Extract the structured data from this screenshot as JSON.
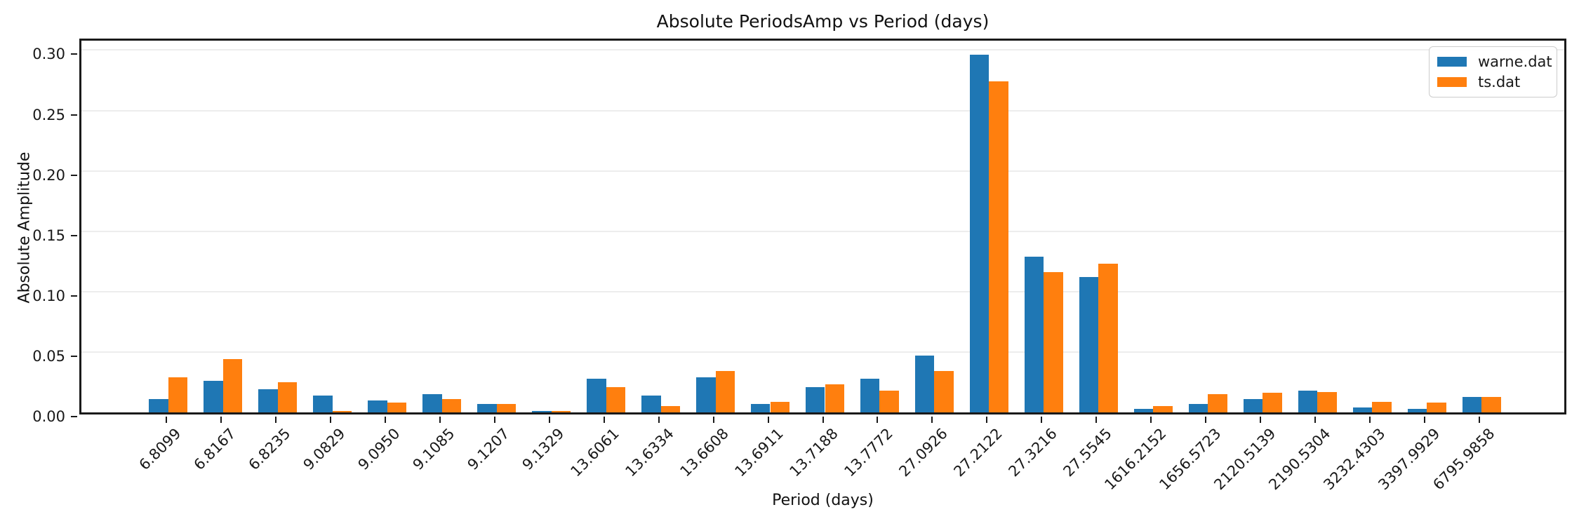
{
  "figure": {
    "title": "Absolute PeriodsAmp vs Period (days)",
    "background": "#ffffff"
  },
  "chart_data": {
    "type": "bar",
    "title": "Absolute PeriodsAmp vs Period (days)",
    "xlabel": "Period (days)",
    "ylabel": "Absolute Amplitude",
    "categories": [
      "6.8099",
      "6.8167",
      "6.8235",
      "9.0829",
      "9.0950",
      "9.1085",
      "9.1207",
      "9.1329",
      "13.6061",
      "13.6334",
      "13.6608",
      "13.6911",
      "13.7188",
      "13.7772",
      "27.0926",
      "27.2122",
      "27.3216",
      "27.5545",
      "1616.2152",
      "1656.5723",
      "2120.5139",
      "2190.5304",
      "3232.4303",
      "3397.9929",
      "6795.9858"
    ],
    "series": [
      {
        "name": "warne.dat",
        "color": "#1f77b4",
        "values": [
          0.011,
          0.026,
          0.019,
          0.014,
          0.01,
          0.015,
          0.007,
          0.001,
          0.028,
          0.014,
          0.029,
          0.007,
          0.021,
          0.028,
          0.047,
          0.296,
          0.129,
          0.112,
          0.003,
          0.007,
          0.011,
          0.018,
          0.004,
          0.003,
          0.013
        ]
      },
      {
        "name": "ts.dat",
        "color": "#ff7f0e",
        "values": [
          0.029,
          0.044,
          0.025,
          0.001,
          0.008,
          0.011,
          0.007,
          0.001,
          0.021,
          0.005,
          0.034,
          0.009,
          0.023,
          0.018,
          0.034,
          0.274,
          0.116,
          0.123,
          0.005,
          0.015,
          0.016,
          0.017,
          0.009,
          0.008,
          0.013
        ]
      }
    ],
    "ylim": [
      0,
      0.3113
    ],
    "ytick_labels": [
      "0.00",
      "0.05",
      "0.10",
      "0.15",
      "0.20",
      "0.25",
      "0.30"
    ],
    "ytick_values": [
      0.0,
      0.05,
      0.1,
      0.15,
      0.2,
      0.25,
      0.3
    ],
    "x_tick_rotation": 45,
    "bar_width": 0.35,
    "grid": "horizontal-light",
    "legend_position": "upper right",
    "legend_entries": [
      "warne.dat",
      "ts.dat"
    ]
  }
}
